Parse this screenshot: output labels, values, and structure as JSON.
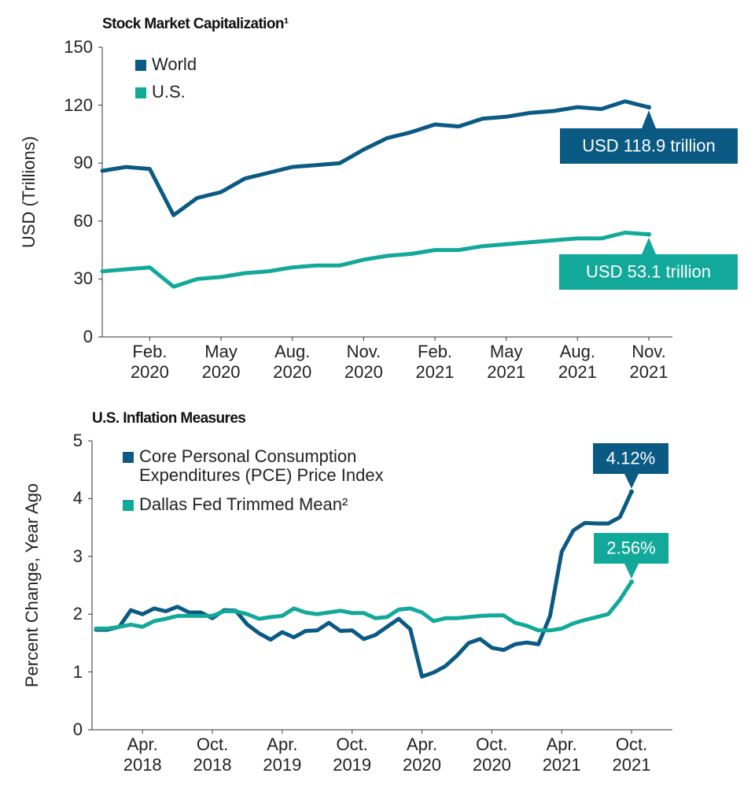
{
  "chart_data": [
    {
      "type": "line",
      "title": "Stock Market Capitalization¹",
      "ylabel": "USD (Trillions)",
      "x": [
        "2019-12",
        "2020-01",
        "2020-02",
        "2020-03",
        "2020-04",
        "2020-05",
        "2020-06",
        "2020-07",
        "2020-08",
        "2020-09",
        "2020-10",
        "2020-11",
        "2020-12",
        "2021-01",
        "2021-02",
        "2021-03",
        "2021-04",
        "2021-05",
        "2021-06",
        "2021-07",
        "2021-08",
        "2021-09",
        "2021-10",
        "2021-11"
      ],
      "series": [
        {
          "name": "World",
          "color": "#0b5a84",
          "values": [
            86,
            88,
            87,
            63,
            72,
            75,
            82,
            85,
            88,
            89,
            90,
            97,
            103,
            106,
            110,
            109,
            113,
            114,
            116,
            117,
            119,
            118,
            122,
            118.9
          ]
        },
        {
          "name": "U.S.",
          "color": "#12a89a",
          "values": [
            34,
            35,
            36,
            26,
            30,
            31,
            33,
            34,
            36,
            37,
            37,
            40,
            42,
            43,
            45,
            45,
            47,
            48,
            49,
            50,
            51,
            51,
            54,
            53.1
          ]
        }
      ],
      "xlim": [
        "2019-12",
        "2021-11"
      ],
      "xticks": [
        {
          "value": "2020-02",
          "label": "Feb. 2020"
        },
        {
          "value": "2020-05",
          "label": "May 2020"
        },
        {
          "value": "2020-08",
          "label": "Aug. 2020"
        },
        {
          "value": "2020-11",
          "label": "Nov. 2020"
        },
        {
          "value": "2021-02",
          "label": "Feb. 2021"
        },
        {
          "value": "2021-05",
          "label": "May 2021"
        },
        {
          "value": "2021-08",
          "label": "Aug. 2021"
        },
        {
          "value": "2021-11",
          "label": "Nov. 2021"
        }
      ],
      "ylim": [
        0,
        150
      ],
      "yticks": [
        0,
        30,
        60,
        90,
        120,
        150
      ],
      "legend": "upper left",
      "annotations": [
        {
          "text": "USD 118.9 trillion",
          "x": "2021-11",
          "y": 118.9
        },
        {
          "text": "USD 53.1 trillion",
          "x": "2021-11",
          "y": 53.1
        }
      ]
    },
    {
      "type": "line",
      "title": "U.S. Inflation Measures",
      "ylabel": "Percent Change, Year Ago",
      "x": [
        "2017-12",
        "2018-01",
        "2018-02",
        "2018-03",
        "2018-04",
        "2018-05",
        "2018-06",
        "2018-07",
        "2018-08",
        "2018-09",
        "2018-10",
        "2018-11",
        "2018-12",
        "2019-01",
        "2019-02",
        "2019-03",
        "2019-04",
        "2019-05",
        "2019-06",
        "2019-07",
        "2019-08",
        "2019-09",
        "2019-10",
        "2019-11",
        "2019-12",
        "2020-01",
        "2020-02",
        "2020-03",
        "2020-04",
        "2020-05",
        "2020-06",
        "2020-07",
        "2020-08",
        "2020-09",
        "2020-10",
        "2020-11",
        "2020-12",
        "2021-01",
        "2021-02",
        "2021-03",
        "2021-04",
        "2021-05",
        "2021-06",
        "2021-07",
        "2021-08",
        "2021-09",
        "2021-10"
      ],
      "series": [
        {
          "name": "Core Personal Consumption Expenditures (PCE) Price Index",
          "color": "#0b5a84",
          "values": [
            1.73,
            1.73,
            1.78,
            2.07,
            2.0,
            2.1,
            2.05,
            2.13,
            2.03,
            2.03,
            1.93,
            2.07,
            2.06,
            1.82,
            1.67,
            1.56,
            1.69,
            1.6,
            1.71,
            1.72,
            1.85,
            1.71,
            1.72,
            1.57,
            1.64,
            1.78,
            1.92,
            1.74,
            0.92,
            0.99,
            1.1,
            1.28,
            1.5,
            1.57,
            1.42,
            1.38,
            1.48,
            1.51,
            1.48,
            1.97,
            3.08,
            3.45,
            3.58,
            3.57,
            3.57,
            3.68,
            4.12
          ]
        },
        {
          "name": "Dallas Fed Trimmed Mean²",
          "color": "#12a89a",
          "values": [
            1.75,
            1.75,
            1.78,
            1.82,
            1.78,
            1.88,
            1.92,
            1.97,
            1.97,
            1.97,
            1.97,
            2.05,
            2.05,
            2.0,
            1.92,
            1.95,
            1.97,
            2.1,
            2.03,
            2.0,
            2.03,
            2.06,
            2.02,
            2.02,
            1.93,
            1.95,
            2.08,
            2.1,
            2.03,
            1.88,
            1.93,
            1.93,
            1.95,
            1.97,
            1.98,
            1.98,
            1.85,
            1.8,
            1.72,
            1.72,
            1.75,
            1.84,
            1.9,
            1.95,
            2.0,
            2.25,
            2.56
          ]
        }
      ],
      "xlim": [
        "2017-12",
        "2021-10"
      ],
      "xticks": [
        {
          "value": "2018-04",
          "label": "Apr. 2018"
        },
        {
          "value": "2018-10",
          "label": "Oct. 2018"
        },
        {
          "value": "2019-04",
          "label": "Apr. 2019"
        },
        {
          "value": "2019-10",
          "label": "Oct. 2019"
        },
        {
          "value": "2020-04",
          "label": "Apr. 2020"
        },
        {
          "value": "2020-10",
          "label": "Oct. 2020"
        },
        {
          "value": "2021-04",
          "label": "Apr. 2021"
        },
        {
          "value": "2021-10",
          "label": "Oct. 2021"
        }
      ],
      "ylim": [
        0,
        5
      ],
      "yticks": [
        0,
        1,
        2,
        3,
        4,
        5
      ],
      "legend": "upper left",
      "annotations": [
        {
          "text": "4.12%",
          "x": "2021-10",
          "y": 4.12
        },
        {
          "text": "2.56%",
          "x": "2021-10",
          "y": 2.56
        }
      ]
    }
  ]
}
